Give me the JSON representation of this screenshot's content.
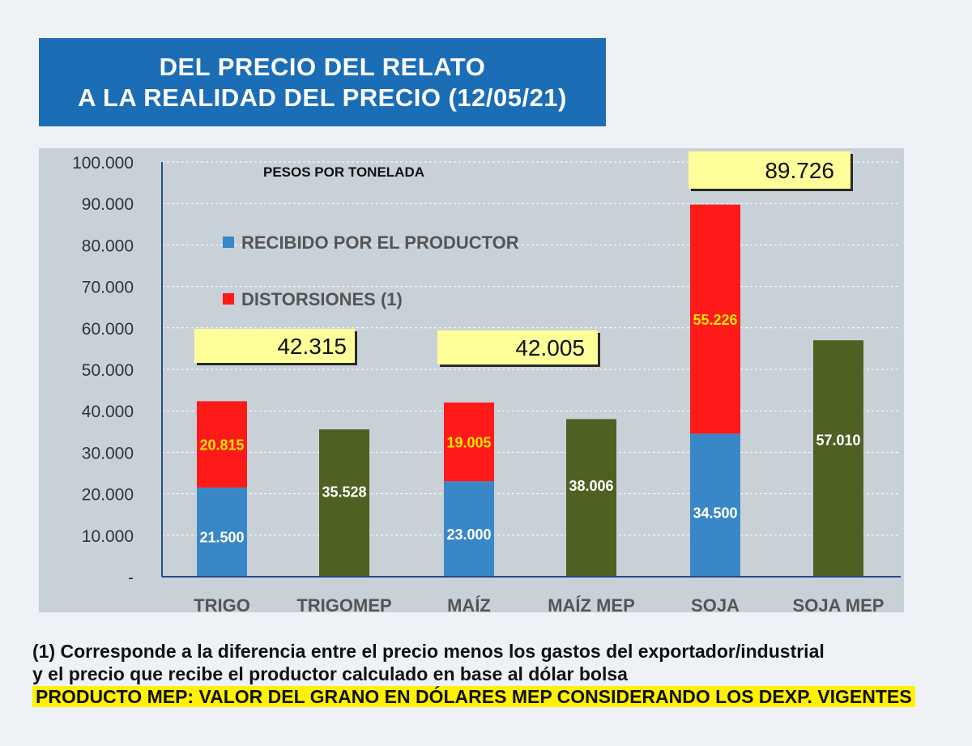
{
  "title": {
    "line1": "DEL PRECIO DEL RELATO",
    "line2": "A LA REALIDAD DEL  PRECIO (12/05/21)"
  },
  "chart_data": {
    "type": "bar",
    "subtitle": "PESOS POR TONELADA",
    "categories": [
      "TRIGO",
      "TRIGOMEP",
      "MAÍZ",
      "MAÍZ MEP",
      "SOJA",
      "SOJA MEP"
    ],
    "series": [
      {
        "name": "RECIBIDO POR EL PRODUCTOR",
        "color": "#3a87c8",
        "values": [
          21500,
          null,
          23000,
          null,
          34500,
          null
        ],
        "labels": [
          "21.500",
          "",
          "23.000",
          "",
          "34.500",
          ""
        ]
      },
      {
        "name": "DISTORSIONES (1)",
        "color": "#ff1a1a",
        "values": [
          20815,
          null,
          19005,
          null,
          55226,
          null
        ],
        "labels": [
          "20.815",
          "",
          "19.005",
          "",
          "55.226",
          ""
        ]
      },
      {
        "name": "PRODUCTO MEP",
        "color": "#4e6122",
        "values": [
          null,
          35528,
          null,
          38006,
          null,
          57010
        ],
        "labels": [
          "",
          "35.528",
          "",
          "38.006",
          "",
          "57.010"
        ]
      }
    ],
    "totals": [
      {
        "category": "TRIGO",
        "value": 42315,
        "label": "42.315"
      },
      {
        "category": "MAÍZ",
        "value": 42005,
        "label": "42.005"
      },
      {
        "category": "SOJA",
        "value": 89726,
        "label": "89.726"
      }
    ],
    "ylim": [
      0,
      100000
    ],
    "yticks": [
      0,
      10000,
      20000,
      30000,
      40000,
      50000,
      60000,
      70000,
      80000,
      90000,
      100000
    ],
    "ytick_labels": [
      "-",
      "10.000",
      "20.000",
      "30.000",
      "40.000",
      "50.000",
      "60.000",
      "70.000",
      "80.000",
      "90.000",
      "100.000"
    ],
    "legend": [
      {
        "label": "RECIBIDO POR EL PRODUCTOR",
        "color": "#3a87c8"
      },
      {
        "label": "DISTORSIONES (1)",
        "color": "#ff1a1a"
      }
    ],
    "grid": true
  },
  "footnote": {
    "line1": "(1)   Corresponde a la diferencia entre el precio menos los gastos del exportador/industrial",
    "line2": "y el precio que recibe el productor calculado en base al dólar bolsa",
    "line3": "PRODUCTO MEP: VALOR DEL GRANO EN DÓLARES MEP CONSIDERANDO LOS DEXP. VIGENTES"
  }
}
